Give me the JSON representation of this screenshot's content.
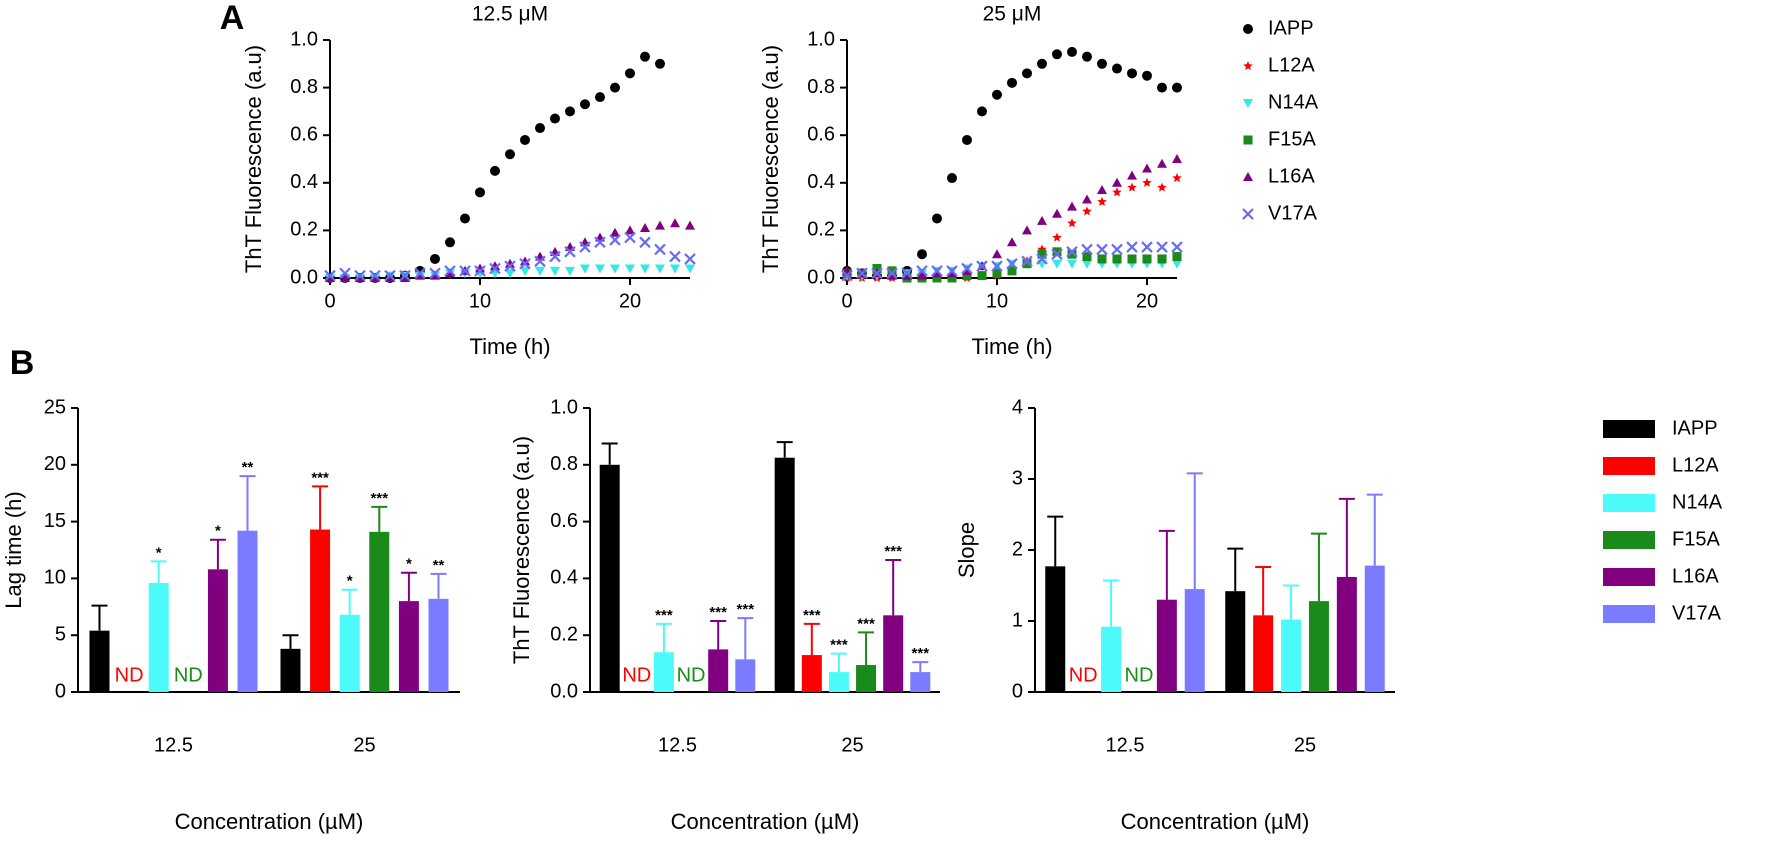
{
  "panel_labels": [
    "A",
    "B"
  ],
  "chart_data": [
    {
      "type": "scatter",
      "title": "12.5 μM",
      "xlabel": "Time (h)",
      "ylabel": "ThT Fluorescence (a.u)",
      "x": [
        0,
        1,
        2,
        3,
        4,
        5,
        6,
        7,
        8,
        9,
        10,
        11,
        12,
        13,
        14,
        15,
        16,
        17,
        18,
        19,
        20,
        21,
        22,
        23,
        24
      ],
      "xlim": [
        0,
        24
      ],
      "xticks": [
        0,
        10,
        20
      ],
      "ylim": [
        0,
        1
      ],
      "yticks": [
        {
          "value": 0,
          "label": "0.0"
        },
        0.2,
        0.4,
        0.6,
        0.8,
        {
          "value": 1,
          "label": "1.0"
        }
      ],
      "series": [
        {
          "name": "IAPP",
          "color": "#000000",
          "marker": "circle",
          "values": [
            0,
            0,
            0,
            0,
            0,
            0.01,
            0.03,
            0.08,
            0.15,
            0.25,
            0.36,
            0.45,
            0.52,
            0.58,
            0.63,
            0.67,
            0.7,
            0.73,
            0.76,
            0.8,
            0.86,
            0.93,
            0.9,
            null,
            null
          ]
        },
        {
          "name": "N14A",
          "color": "#33e8e8",
          "marker": "tri-down",
          "values": [
            0,
            0,
            0,
            0,
            0.01,
            0.01,
            0.01,
            0.01,
            0.02,
            0.02,
            0.02,
            0.02,
            0.02,
            0.03,
            0.03,
            0.03,
            0.03,
            0.04,
            0.04,
            0.04,
            0.04,
            0.04,
            0.04,
            0.04,
            0.04
          ]
        },
        {
          "name": "L16A",
          "color": "#800080",
          "marker": "tri-up",
          "values": [
            0,
            0,
            0,
            0,
            0,
            0,
            0.01,
            0.01,
            0.02,
            0.03,
            0.04,
            0.05,
            0.06,
            0.07,
            0.09,
            0.11,
            0.13,
            0.15,
            0.17,
            0.19,
            0.2,
            0.21,
            0.22,
            0.23,
            0.22
          ]
        },
        {
          "name": "V17A",
          "color": "#6a6af5",
          "marker": "cross",
          "values": [
            0.01,
            0.02,
            0.01,
            0.01,
            0.01,
            0.01,
            0.02,
            0.02,
            0.03,
            0.03,
            0.03,
            0.04,
            0.05,
            0.06,
            0.07,
            0.09,
            0.11,
            0.13,
            0.15,
            0.16,
            0.17,
            0.15,
            0.12,
            0.09,
            0.08
          ]
        }
      ]
    },
    {
      "type": "scatter",
      "title": "25 μM",
      "xlabel": "Time (h)",
      "ylabel": "ThT Fluorescence (a.u)",
      "x": [
        0,
        1,
        2,
        3,
        4,
        5,
        6,
        7,
        8,
        9,
        10,
        11,
        12,
        13,
        14,
        15,
        16,
        17,
        18,
        19,
        20,
        21,
        22
      ],
      "xlim": [
        0,
        22
      ],
      "xticks": [
        0,
        10,
        20
      ],
      "ylim": [
        0,
        1
      ],
      "yticks": [
        {
          "value": 0,
          "label": "0.0"
        },
        0.2,
        0.4,
        0.6,
        0.8,
        {
          "value": 1,
          "label": "1.0"
        }
      ],
      "legend": "right",
      "series": [
        {
          "name": "IAPP",
          "color": "#000000",
          "marker": "circle",
          "values": [
            0.03,
            0.02,
            0.01,
            0.01,
            0.03,
            0.1,
            0.25,
            0.42,
            0.58,
            0.7,
            0.77,
            0.82,
            0.86,
            0.9,
            0.94,
            0.95,
            0.93,
            0.9,
            0.88,
            0.86,
            0.85,
            0.8,
            0.8
          ]
        },
        {
          "name": "L12A",
          "color": "#ff0000",
          "marker": "star",
          "values": [
            0,
            0,
            0,
            0,
            0,
            0,
            0,
            0,
            0,
            0.01,
            0.01,
            0.03,
            0.07,
            0.12,
            0.17,
            0.23,
            0.28,
            0.32,
            0.36,
            0.38,
            0.4,
            0.38,
            0.42
          ]
        },
        {
          "name": "N14A",
          "color": "#33e8e8",
          "marker": "tri-down",
          "values": [
            0.01,
            0.01,
            0.01,
            0.01,
            0.02,
            0.02,
            0.03,
            0.03,
            0.04,
            0.05,
            0.05,
            0.06,
            0.06,
            0.06,
            0.06,
            0.06,
            0.06,
            0.06,
            0.06,
            0.06,
            0.06,
            0.06,
            0.06
          ]
        },
        {
          "name": "F15A",
          "color": "#1a8a1a",
          "marker": "square",
          "values": [
            0.02,
            0.02,
            0.04,
            0.03,
            0,
            0,
            0,
            0,
            0.01,
            0.01,
            0.02,
            0.03,
            0.06,
            0.1,
            0.11,
            0.1,
            0.09,
            0.08,
            0.08,
            0.08,
            0.08,
            0.08,
            0.09
          ]
        },
        {
          "name": "L16A",
          "color": "#800080",
          "marker": "tri-up",
          "values": [
            0.03,
            0.02,
            0.02,
            0.01,
            0.01,
            0.01,
            0.02,
            0.02,
            0.03,
            0.05,
            0.1,
            0.15,
            0.2,
            0.24,
            0.27,
            0.3,
            0.33,
            0.37,
            0.4,
            0.43,
            0.46,
            0.48,
            0.5
          ]
        },
        {
          "name": "V17A",
          "color": "#6a6af5",
          "marker": "cross",
          "values": [
            0.01,
            0.02,
            0.02,
            0.02,
            0.02,
            0.03,
            0.03,
            0.03,
            0.04,
            0.05,
            0.05,
            0.06,
            0.07,
            0.08,
            0.1,
            0.11,
            0.12,
            0.12,
            0.12,
            0.13,
            0.13,
            0.13,
            0.13
          ]
        }
      ]
    },
    {
      "type": "bar",
      "xlabel": "Concentration (µM)",
      "ylabel": "Lag time (h)",
      "categories": [
        "12.5",
        "25"
      ],
      "ylim": [
        0,
        25
      ],
      "yticks": [
        0,
        5,
        10,
        15,
        20,
        25
      ],
      "series": [
        {
          "name": "IAPP",
          "color": "#000000",
          "values": [
            5.4,
            3.8
          ],
          "errors": [
            2.2,
            1.2
          ]
        },
        {
          "name": "L12A",
          "color": "#ff0000",
          "values": [
            null,
            14.3
          ],
          "errors": [
            null,
            3.8
          ],
          "value_labels": [
            "ND",
            "***"
          ]
        },
        {
          "name": "N14A",
          "color": "#4dfafa",
          "values": [
            9.6,
            6.8
          ],
          "errors": [
            1.9,
            2.2
          ],
          "value_labels": [
            "*",
            "*"
          ]
        },
        {
          "name": "F15A",
          "color": "#1a8a1a",
          "values": [
            null,
            14.1
          ],
          "errors": [
            null,
            2.2
          ],
          "value_labels": [
            "ND",
            "***"
          ]
        },
        {
          "name": "L16A",
          "color": "#800080",
          "values": [
            10.8,
            8.0
          ],
          "errors": [
            2.6,
            2.5
          ],
          "value_labels": [
            "*",
            "*"
          ]
        },
        {
          "name": "V17A",
          "color": "#7b7bff",
          "values": [
            14.2,
            8.2
          ],
          "errors": [
            4.8,
            2.2
          ],
          "value_labels": [
            "**",
            "**"
          ]
        }
      ]
    },
    {
      "type": "bar",
      "xlabel": "Concentration (µM)",
      "ylabel": "ThT Fluorescence (a.u)",
      "categories": [
        "12.5",
        "25"
      ],
      "ylim": [
        0,
        1
      ],
      "yticks": [
        {
          "value": 0,
          "label": "0.0"
        },
        0.2,
        0.4,
        0.6,
        0.8,
        {
          "value": 1,
          "label": "1.0"
        }
      ],
      "series": [
        {
          "name": "IAPP",
          "color": "#000000",
          "values": [
            0.8,
            0.825
          ],
          "errors": [
            0.075,
            0.055
          ]
        },
        {
          "name": "L12A",
          "color": "#ff0000",
          "values": [
            null,
            0.13
          ],
          "errors": [
            null,
            0.11
          ],
          "value_labels": [
            "ND",
            "***"
          ]
        },
        {
          "name": "N14A",
          "color": "#4dfafa",
          "values": [
            0.14,
            0.07
          ],
          "errors": [
            0.1,
            0.065
          ],
          "value_labels": [
            "***",
            "***"
          ]
        },
        {
          "name": "F15A",
          "color": "#1a8a1a",
          "values": [
            null,
            0.095
          ],
          "errors": [
            null,
            0.115
          ],
          "value_labels": [
            "ND",
            "***"
          ]
        },
        {
          "name": "L16A",
          "color": "#800080",
          "values": [
            0.15,
            0.27
          ],
          "errors": [
            0.1,
            0.195
          ],
          "value_labels": [
            "***",
            "***"
          ]
        },
        {
          "name": "V17A",
          "color": "#7b7bff",
          "values": [
            0.115,
            0.07
          ],
          "errors": [
            0.145,
            0.035
          ],
          "value_labels": [
            "***",
            "***"
          ]
        }
      ]
    },
    {
      "type": "bar",
      "xlabel": "Concentration (µM)",
      "ylabel": "Slope",
      "categories": [
        "12.5",
        "25"
      ],
      "ylim": [
        0,
        4
      ],
      "yticks": [
        0,
        1,
        2,
        3,
        4
      ],
      "legend": "right",
      "series": [
        {
          "name": "IAPP",
          "color": "#000000",
          "values": [
            1.77,
            1.42
          ],
          "errors": [
            0.7,
            0.6
          ]
        },
        {
          "name": "L12A",
          "color": "#ff0000",
          "values": [
            null,
            1.08
          ],
          "errors": [
            null,
            0.68
          ],
          "value_labels": [
            "ND",
            null
          ]
        },
        {
          "name": "N14A",
          "color": "#4dfafa",
          "values": [
            0.92,
            1.02
          ],
          "errors": [
            0.65,
            0.48
          ]
        },
        {
          "name": "F15A",
          "color": "#1a8a1a",
          "values": [
            null,
            1.28
          ],
          "errors": [
            null,
            0.95
          ],
          "value_labels": [
            "ND",
            null
          ]
        },
        {
          "name": "L16A",
          "color": "#800080",
          "values": [
            1.3,
            1.62
          ],
          "errors": [
            0.97,
            1.1
          ]
        },
        {
          "name": "V17A",
          "color": "#7b7bff",
          "values": [
            1.45,
            1.78
          ],
          "errors": [
            1.63,
            1.0
          ]
        }
      ]
    }
  ]
}
